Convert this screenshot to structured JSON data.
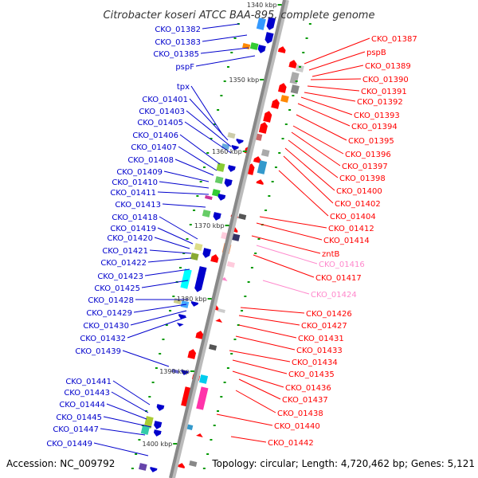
{
  "title": "Citrobacter koseri ATCC BAA-895, complete genome",
  "footer": {
    "accession": "Accession: NC_009792",
    "topology": "Topology: circular; Length: 4,720,462 bp; Genes: 5,121"
  },
  "colors": {
    "forward": "#0000cc",
    "reverse": "#ff0000",
    "pseudo": "#ff88cc",
    "axis": "#888888",
    "tick": "#009900"
  },
  "kbp_marks": [
    "1340 kbp",
    "1350 kbp",
    "1360 kbp",
    "1370 kbp",
    "1380 kbp",
    "1390 kbp",
    "1400 kbp"
  ],
  "left_labels": [
    "CKO_01382",
    "CKO_01383",
    "CKO_01385",
    "pspF",
    "tpx",
    "CKO_01401",
    "CKO_01403",
    "CKO_01405",
    "CKO_01406",
    "CKO_01407",
    "CKO_01408",
    "CKO_01409",
    "CKO_01410",
    "CKO_01411",
    "CKO_01413",
    "CKO_01418",
    "CKO_01419",
    "CKO_01420",
    "CKO_01421",
    "CKO_01422",
    "CKO_01423",
    "CKO_01425",
    "CKO_01428",
    "CKO_01429",
    "CKO_01430",
    "CKO_01432",
    "CKO_01439",
    "CKO_01441",
    "CKO_01443",
    "CKO_01444",
    "CKO_01445",
    "CKO_01447",
    "CKO_01449"
  ],
  "right_labels": [
    "CKO_01387",
    "pspB",
    "CKO_01389",
    "CKO_01390",
    "CKO_01391",
    "CKO_01392",
    "CKO_01393",
    "CKO_01394",
    "CKO_01395",
    "CKO_01396",
    "CKO_01397",
    "CKO_01398",
    "CKO_01400",
    "CKO_01402",
    "CKO_01404",
    "CKO_01412",
    "CKO_01414",
    "zntB",
    "CKO_01416",
    "CKO_01417",
    "CKO_01424",
    "CKO_01426",
    "CKO_01427",
    "CKO_01431",
    "CKO_01433",
    "CKO_01434",
    "CKO_01435",
    "CKO_01436",
    "CKO_01437",
    "CKO_01438",
    "CKO_01440",
    "CKO_01442"
  ],
  "pseudo_right": [
    "CKO_01416",
    "CKO_01424"
  ]
}
